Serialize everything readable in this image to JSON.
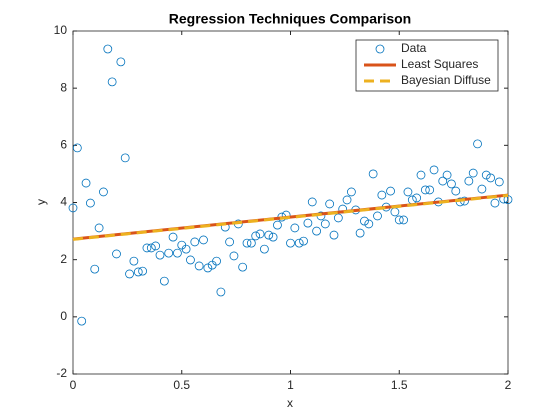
{
  "chart_data": {
    "type": "scatter",
    "title": "Regression Techniques Comparison",
    "x_label": "x",
    "y_label": "y",
    "xlim": [
      0,
      2
    ],
    "ylim": [
      -2,
      10
    ],
    "xticks": [
      0,
      0.5,
      1,
      1.5,
      2
    ],
    "yticks": [
      -2,
      0,
      2,
      4,
      6,
      8,
      10
    ],
    "legend": "upper right",
    "series": [
      {
        "name": "Data",
        "color": "#0072bd",
        "style": "markers",
        "x": [
          0,
          0.02,
          0.04,
          0.06,
          0.08,
          0.1,
          0.12,
          0.14,
          0.16,
          0.18,
          0.2,
          0.22,
          0.24,
          0.26,
          0.28,
          0.3,
          0.32,
          0.34,
          0.36,
          0.38,
          0.4,
          0.42,
          0.44,
          0.46,
          0.48,
          0.5,
          0.52,
          0.54,
          0.56,
          0.58,
          0.6,
          0.62,
          0.64,
          0.66,
          0.68,
          0.7,
          0.72,
          0.74,
          0.76,
          0.78,
          0.8,
          0.82,
          0.84,
          0.86,
          0.88,
          0.9,
          0.92,
          0.94,
          0.96,
          0.98,
          1,
          1.02,
          1.04,
          1.06,
          1.08,
          1.1,
          1.12,
          1.14,
          1.16,
          1.18,
          1.2,
          1.22,
          1.24,
          1.26,
          1.28,
          1.3,
          1.32,
          1.34,
          1.36,
          1.38,
          1.4,
          1.42,
          1.44,
          1.46,
          1.48,
          1.5,
          1.52,
          1.54,
          1.56,
          1.58,
          1.6,
          1.62,
          1.64,
          1.66,
          1.68,
          1.7,
          1.72,
          1.74,
          1.76,
          1.78,
          1.8,
          1.82,
          1.84,
          1.86,
          1.88,
          1.9,
          1.92,
          1.94,
          1.96,
          1.98,
          2
        ],
        "values": [
          3.81,
          5.91,
          -0.15,
          4.68,
          3.98,
          1.67,
          3.11,
          4.37,
          9.37,
          8.22,
          2.2,
          8.92,
          5.56,
          1.5,
          1.95,
          1.57,
          1.6,
          2.41,
          2.41,
          2.48,
          2.16,
          1.25,
          2.23,
          2.79,
          2.23,
          2.51,
          2.37,
          1.99,
          2.62,
          1.78,
          2.69,
          1.71,
          1.81,
          1.95,
          0.87,
          3.14,
          2.62,
          2.13,
          3.25,
          1.74,
          2.58,
          2.58,
          2.83,
          2.9,
          2.37,
          2.86,
          2.79,
          3.21,
          3.49,
          3.56,
          2.58,
          3.11,
          2.58,
          2.65,
          3.28,
          4.02,
          3.0,
          3.53,
          3.25,
          3.95,
          2.86,
          3.46,
          3.77,
          4.09,
          4.37,
          3.74,
          2.93,
          3.35,
          3.25,
          5.0,
          3.53,
          4.26,
          3.84,
          4.4,
          3.67,
          3.39,
          3.39,
          4.37,
          4.09,
          4.16,
          4.96,
          4.44,
          4.44,
          5.14,
          4.02,
          4.75,
          4.96,
          4.65,
          4.4,
          4.02,
          4.05,
          4.75,
          5.03,
          6.05,
          4.47,
          4.96,
          4.86,
          3.98,
          4.72,
          4.12,
          4.1
        ]
      },
      {
        "name": "Least Squares",
        "color": "#d95319",
        "style": "line",
        "x": [
          0,
          2
        ],
        "values": [
          2.72,
          4.26
        ]
      },
      {
        "name": "Bayesian Diffuse",
        "color": "#edb120",
        "style": "dashed",
        "x": [
          0,
          2
        ],
        "values": [
          2.71,
          4.25
        ]
      }
    ]
  }
}
